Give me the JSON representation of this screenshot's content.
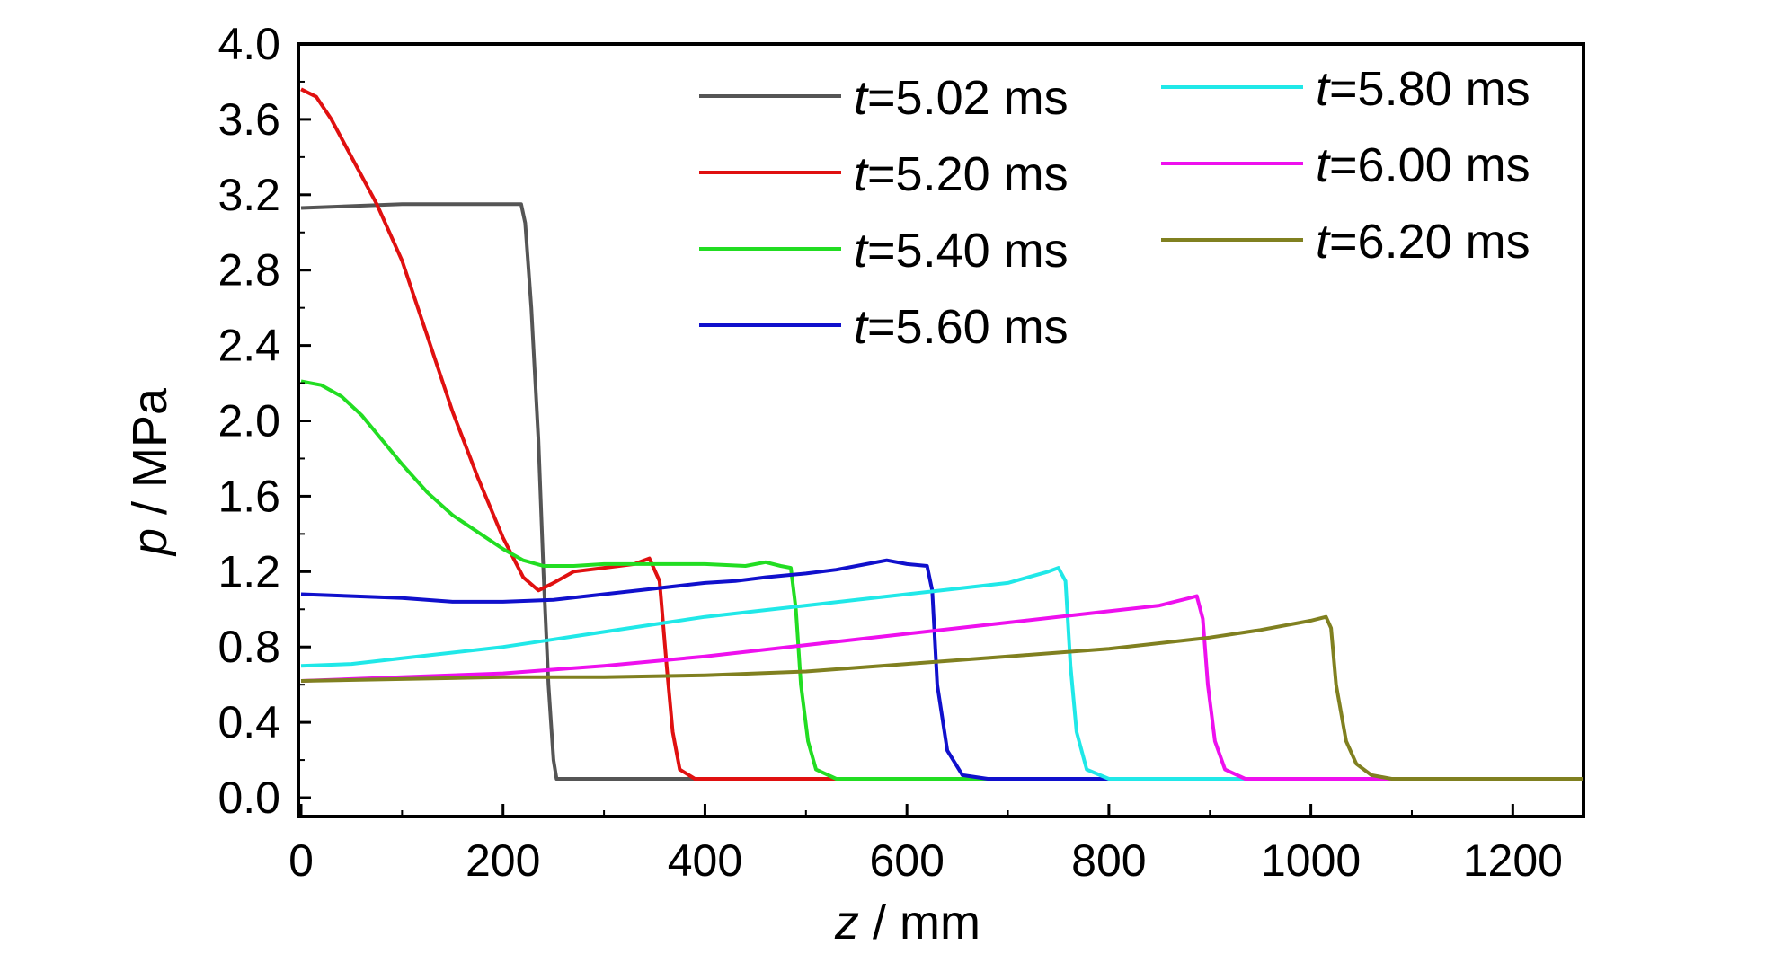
{
  "chart_data": {
    "type": "line",
    "xlabel": {
      "var": "z",
      "unit": " / mm"
    },
    "ylabel": {
      "var": "p",
      "unit": " / MPa"
    },
    "xlim": [
      0,
      1270
    ],
    "ylim": [
      -0.1,
      4.0
    ],
    "xticks": [
      0,
      200,
      400,
      600,
      800,
      1000,
      1200
    ],
    "xtick_labels": [
      "0",
      "200",
      "400",
      "600",
      "800",
      "1000",
      "1200"
    ],
    "yticks": [
      0.0,
      0.4,
      0.8,
      1.2,
      1.6,
      2.0,
      2.4,
      2.8,
      3.2,
      3.6,
      4.0
    ],
    "ytick_labels": [
      "0.0",
      "0.4",
      "0.8",
      "1.2",
      "1.6",
      "2.0",
      "2.4",
      "2.8",
      "3.2",
      "3.6",
      "4.0"
    ],
    "grid": false,
    "legend_position": "top-right",
    "series": [
      {
        "name": "t=5.02 ms",
        "name_var": "t",
        "name_rest": "=5.02 ms",
        "color": "#555555",
        "points": [
          [
            0,
            3.13
          ],
          [
            50,
            3.14
          ],
          [
            100,
            3.15
          ],
          [
            150,
            3.15
          ],
          [
            200,
            3.15
          ],
          [
            218,
            3.15
          ],
          [
            222,
            3.05
          ],
          [
            228,
            2.6
          ],
          [
            235,
            1.9
          ],
          [
            240,
            1.2
          ],
          [
            245,
            0.6
          ],
          [
            250,
            0.2
          ],
          [
            253,
            0.1
          ],
          [
            400,
            0.1
          ],
          [
            700,
            0.1
          ],
          [
            1000,
            0.1
          ],
          [
            1270,
            0.1
          ]
        ]
      },
      {
        "name": "t=5.20 ms",
        "name_var": "t",
        "name_rest": "=5.20 ms",
        "color": "#e01010",
        "points": [
          [
            0,
            3.76
          ],
          [
            15,
            3.72
          ],
          [
            30,
            3.6
          ],
          [
            50,
            3.4
          ],
          [
            75,
            3.15
          ],
          [
            100,
            2.85
          ],
          [
            125,
            2.45
          ],
          [
            150,
            2.05
          ],
          [
            175,
            1.7
          ],
          [
            200,
            1.38
          ],
          [
            220,
            1.17
          ],
          [
            235,
            1.1
          ],
          [
            250,
            1.14
          ],
          [
            270,
            1.2
          ],
          [
            300,
            1.22
          ],
          [
            330,
            1.24
          ],
          [
            345,
            1.27
          ],
          [
            355,
            1.15
          ],
          [
            362,
            0.7
          ],
          [
            368,
            0.35
          ],
          [
            375,
            0.15
          ],
          [
            390,
            0.1
          ],
          [
            500,
            0.1
          ],
          [
            800,
            0.1
          ],
          [
            1270,
            0.1
          ]
        ]
      },
      {
        "name": "t=5.40 ms",
        "name_var": "t",
        "name_rest": "=5.40 ms",
        "color": "#22dd22",
        "points": [
          [
            0,
            2.21
          ],
          [
            20,
            2.19
          ],
          [
            40,
            2.13
          ],
          [
            60,
            2.03
          ],
          [
            80,
            1.9
          ],
          [
            100,
            1.77
          ],
          [
            125,
            1.62
          ],
          [
            150,
            1.5
          ],
          [
            175,
            1.41
          ],
          [
            200,
            1.32
          ],
          [
            220,
            1.26
          ],
          [
            240,
            1.23
          ],
          [
            270,
            1.23
          ],
          [
            300,
            1.24
          ],
          [
            350,
            1.24
          ],
          [
            400,
            1.24
          ],
          [
            440,
            1.23
          ],
          [
            460,
            1.25
          ],
          [
            475,
            1.23
          ],
          [
            485,
            1.22
          ],
          [
            490,
            1.0
          ],
          [
            495,
            0.6
          ],
          [
            502,
            0.3
          ],
          [
            510,
            0.15
          ],
          [
            530,
            0.1
          ],
          [
            700,
            0.1
          ],
          [
            1000,
            0.1
          ],
          [
            1270,
            0.1
          ]
        ]
      },
      {
        "name": "t=5.60 ms",
        "name_var": "t",
        "name_rest": "=5.60 ms",
        "color": "#1010cc",
        "points": [
          [
            0,
            1.08
          ],
          [
            50,
            1.07
          ],
          [
            100,
            1.06
          ],
          [
            150,
            1.04
          ],
          [
            200,
            1.04
          ],
          [
            250,
            1.05
          ],
          [
            300,
            1.08
          ],
          [
            350,
            1.11
          ],
          [
            400,
            1.14
          ],
          [
            430,
            1.15
          ],
          [
            460,
            1.17
          ],
          [
            500,
            1.19
          ],
          [
            530,
            1.21
          ],
          [
            560,
            1.24
          ],
          [
            580,
            1.26
          ],
          [
            600,
            1.24
          ],
          [
            620,
            1.23
          ],
          [
            625,
            1.1
          ],
          [
            630,
            0.6
          ],
          [
            640,
            0.25
          ],
          [
            655,
            0.12
          ],
          [
            680,
            0.1
          ],
          [
            900,
            0.1
          ],
          [
            1270,
            0.1
          ]
        ]
      },
      {
        "name": "t=5.80 ms",
        "name_var": "t",
        "name_rest": "=5.80 ms",
        "color": "#20e8e8",
        "points": [
          [
            0,
            0.7
          ],
          [
            50,
            0.71
          ],
          [
            100,
            0.74
          ],
          [
            150,
            0.77
          ],
          [
            200,
            0.8
          ],
          [
            250,
            0.84
          ],
          [
            300,
            0.88
          ],
          [
            350,
            0.92
          ],
          [
            400,
            0.96
          ],
          [
            450,
            0.99
          ],
          [
            500,
            1.02
          ],
          [
            550,
            1.05
          ],
          [
            600,
            1.08
          ],
          [
            650,
            1.11
          ],
          [
            700,
            1.14
          ],
          [
            740,
            1.2
          ],
          [
            750,
            1.22
          ],
          [
            757,
            1.15
          ],
          [
            762,
            0.7
          ],
          [
            768,
            0.35
          ],
          [
            778,
            0.15
          ],
          [
            800,
            0.1
          ],
          [
            1000,
            0.1
          ],
          [
            1270,
            0.1
          ]
        ]
      },
      {
        "name": "t=6.00 ms",
        "name_var": "t",
        "name_rest": "=6.00 ms",
        "color": "#ee10ee",
        "points": [
          [
            0,
            0.62
          ],
          [
            100,
            0.64
          ],
          [
            200,
            0.66
          ],
          [
            300,
            0.7
          ],
          [
            400,
            0.75
          ],
          [
            500,
            0.81
          ],
          [
            600,
            0.87
          ],
          [
            700,
            0.93
          ],
          [
            800,
            0.99
          ],
          [
            850,
            1.02
          ],
          [
            880,
            1.06
          ],
          [
            887,
            1.07
          ],
          [
            893,
            0.95
          ],
          [
            898,
            0.6
          ],
          [
            905,
            0.3
          ],
          [
            915,
            0.15
          ],
          [
            935,
            0.1
          ],
          [
            1100,
            0.1
          ],
          [
            1270,
            0.1
          ]
        ]
      },
      {
        "name": "t=6.20 ms",
        "name_var": "t",
        "name_rest": "=6.20 ms",
        "color": "#808020",
        "points": [
          [
            0,
            0.62
          ],
          [
            100,
            0.63
          ],
          [
            200,
            0.64
          ],
          [
            300,
            0.64
          ],
          [
            400,
            0.65
          ],
          [
            500,
            0.67
          ],
          [
            600,
            0.71
          ],
          [
            700,
            0.75
          ],
          [
            800,
            0.79
          ],
          [
            900,
            0.85
          ],
          [
            950,
            0.89
          ],
          [
            1000,
            0.94
          ],
          [
            1015,
            0.96
          ],
          [
            1020,
            0.9
          ],
          [
            1025,
            0.6
          ],
          [
            1035,
            0.3
          ],
          [
            1045,
            0.18
          ],
          [
            1060,
            0.12
          ],
          [
            1080,
            0.1
          ],
          [
            1270,
            0.1
          ]
        ]
      }
    ]
  }
}
